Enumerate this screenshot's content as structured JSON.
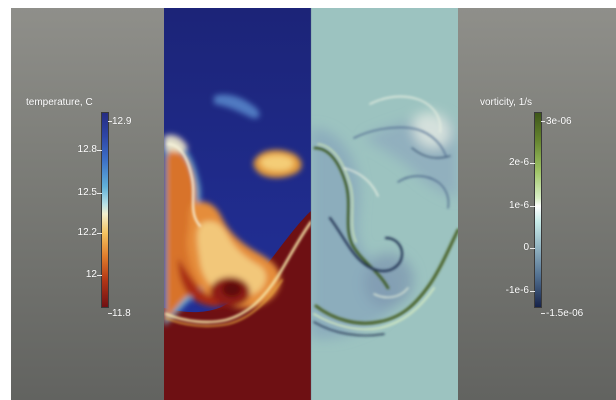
{
  "scene": {
    "background_top": "#8f8f8a",
    "background_bottom": "#626360"
  },
  "temperature_legend": {
    "title": "temperature, C",
    "max_label": "12.9",
    "min_label": "11.8",
    "tick_labels": [
      "12.8",
      "12.5",
      "12.2",
      "12"
    ],
    "colormap": [
      "#262c82",
      "#3c6fc7",
      "#61b1d9",
      "#f2efcf",
      "#f4c25f",
      "#e07c2c",
      "#b33716",
      "#701014"
    ]
  },
  "vorticity_legend": {
    "title": "vorticity, 1/s",
    "max_label": "3e-06",
    "min_label": "-1.5e-06",
    "tick_labels": [
      "2e-6",
      "1e-6",
      "0",
      "-1e-6"
    ],
    "colormap": [
      "#3e5619",
      "#9fc466",
      "#ffffff",
      "#c8ece9",
      "#8fb0bf",
      "#537191",
      "#16234a"
    ]
  },
  "panels": {
    "temperature_field": "temperature",
    "vorticity_field": "vorticity"
  }
}
